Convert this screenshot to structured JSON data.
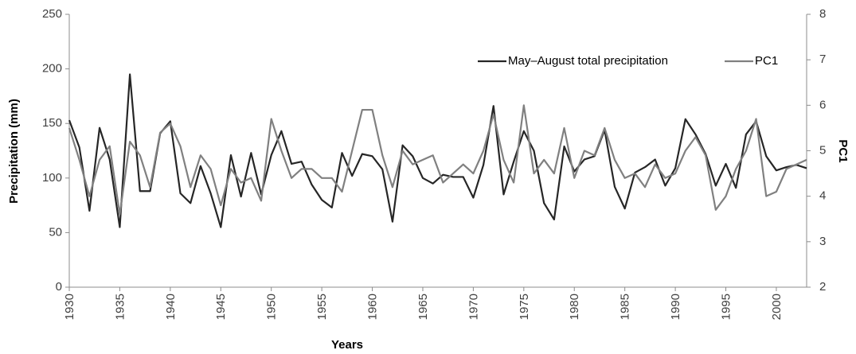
{
  "chart_data": {
    "type": "line",
    "x_label": "Years",
    "y_label": "Precipitation (mm)",
    "y2_label": "PC1",
    "x": [
      1930,
      1931,
      1932,
      1933,
      1934,
      1935,
      1936,
      1937,
      1938,
      1939,
      1940,
      1941,
      1942,
      1943,
      1944,
      1945,
      1946,
      1947,
      1948,
      1949,
      1950,
      1951,
      1952,
      1953,
      1954,
      1955,
      1956,
      1957,
      1958,
      1959,
      1960,
      1961,
      1962,
      1963,
      1964,
      1965,
      1966,
      1967,
      1968,
      1969,
      1970,
      1971,
      1972,
      1973,
      1974,
      1975,
      1976,
      1977,
      1978,
      1979,
      1980,
      1981,
      1982,
      1983,
      1984,
      1985,
      1986,
      1987,
      1988,
      1989,
      1990,
      1991,
      1992,
      1993,
      1994,
      1995,
      1996,
      1997,
      1998,
      1999,
      2000,
      2001,
      2002,
      2003
    ],
    "series": [
      {
        "name": "May–August total precipitation",
        "color": "#262626",
        "axis": "y",
        "values": [
          153,
          128,
          70,
          146,
          117,
          55,
          195,
          88,
          88,
          141,
          152,
          86,
          77,
          111,
          86,
          55,
          121,
          83,
          123,
          85,
          121,
          143,
          113,
          115,
          94,
          80,
          73,
          123,
          102,
          122,
          120,
          108,
          60,
          130,
          120,
          100,
          95,
          103,
          101,
          101,
          82,
          112,
          166,
          85,
          115,
          143,
          125,
          77,
          62,
          129,
          106,
          117,
          120,
          144,
          92,
          72,
          105,
          110,
          117,
          93,
          109,
          154,
          140,
          122,
          93,
          113,
          91,
          140,
          152,
          120,
          107,
          110,
          112,
          109
        ]
      },
      {
        "name": "PC1",
        "color": "#808080",
        "axis": "y2",
        "values": [
          5.5,
          4.8,
          4.0,
          4.8,
          5.1,
          3.6,
          5.2,
          4.9,
          4.2,
          5.4,
          5.6,
          5.1,
          4.2,
          4.9,
          4.6,
          3.8,
          4.6,
          4.3,
          4.4,
          3.9,
          5.7,
          5.0,
          4.4,
          4.6,
          4.6,
          4.4,
          4.4,
          4.1,
          5.0,
          5.9,
          5.9,
          4.9,
          4.2,
          5.0,
          4.7,
          4.8,
          4.9,
          4.3,
          4.5,
          4.7,
          4.5,
          5.0,
          5.8,
          4.8,
          4.3,
          6.0,
          4.5,
          4.8,
          4.5,
          5.5,
          4.4,
          5.0,
          4.9,
          5.5,
          4.8,
          4.4,
          4.5,
          4.2,
          4.7,
          4.4,
          4.5,
          5.0,
          5.3,
          4.9,
          3.7,
          4.0,
          4.6,
          5.0,
          5.7,
          4.0,
          4.1,
          4.6,
          4.7,
          4.8
        ]
      }
    ],
    "xlim": [
      1930,
      2003
    ],
    "xticks": [
      1930,
      1935,
      1940,
      1945,
      1950,
      1955,
      1960,
      1965,
      1970,
      1975,
      1980,
      1985,
      1990,
      1995,
      2000
    ],
    "ylim": [
      0,
      250
    ],
    "yticks": [
      0,
      50,
      100,
      150,
      200,
      250
    ],
    "y2lim": [
      2,
      8
    ],
    "y2ticks": [
      2,
      3,
      4,
      5,
      6,
      7,
      8
    ],
    "grid": false,
    "legend": "top-right"
  }
}
